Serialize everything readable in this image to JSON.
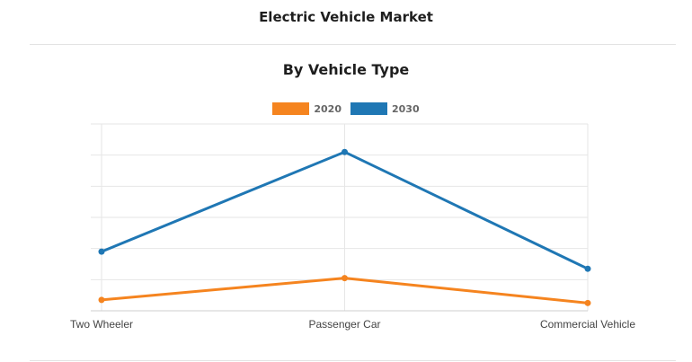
{
  "header": {
    "title": "Electric Vehicle Market"
  },
  "chart_data": {
    "type": "line",
    "title": "By Vehicle Type",
    "categories": [
      "Two Wheeler",
      "Passenger Car",
      "Commercial Vehicle"
    ],
    "series": [
      {
        "name": "2020",
        "color": "#f5841f",
        "values": [
          3.5,
          10.5,
          2.5
        ]
      },
      {
        "name": "2030",
        "color": "#1f77b4",
        "values": [
          19,
          51,
          13.5
        ]
      }
    ],
    "ylim": [
      0,
      60
    ],
    "grid": true,
    "legend_position": "top-center",
    "xlabel": "",
    "ylabel": ""
  }
}
